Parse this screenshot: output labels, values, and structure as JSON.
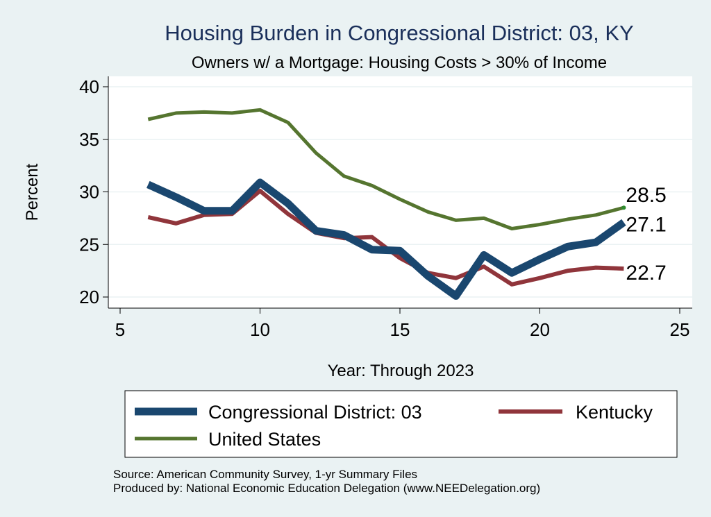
{
  "chart_data": {
    "type": "line",
    "title": "Housing Burden in Congressional District:  03, KY",
    "subtitle": "Owners w/ a Mortgage: Housing Costs > 30% of Income",
    "xlabel": "Year: Through 2023",
    "ylabel": "Percent",
    "xlim": [
      5,
      25
    ],
    "ylim": [
      20,
      40
    ],
    "xticks": [
      5,
      10,
      15,
      20,
      25
    ],
    "yticks": [
      20,
      25,
      30,
      35,
      40
    ],
    "grid": true,
    "legend_position": "bottom",
    "x": [
      6,
      7,
      8,
      9,
      10,
      11,
      12,
      13,
      14,
      15,
      16,
      17,
      18,
      19,
      20,
      21,
      22,
      23
    ],
    "series": [
      {
        "name": "Congressional District:  03",
        "color": "#1a476f",
        "values": [
          30.7,
          29.5,
          28.2,
          28.2,
          30.9,
          28.9,
          26.3,
          25.9,
          24.5,
          24.4,
          22.0,
          20.1,
          24.0,
          22.3,
          23.6,
          24.8,
          25.2,
          27.1
        ],
        "end_label": "27.1"
      },
      {
        "name": "Kentucky",
        "color": "#90353b",
        "values": [
          27.6,
          27.0,
          27.8,
          27.9,
          30.1,
          27.9,
          26.1,
          25.6,
          25.7,
          23.7,
          22.3,
          21.8,
          22.9,
          21.2,
          21.8,
          22.5,
          22.8,
          22.7
        ],
        "end_label": "22.7"
      },
      {
        "name": "United States",
        "color": "#55752f",
        "values": [
          36.9,
          37.5,
          37.6,
          37.5,
          37.8,
          36.6,
          33.7,
          31.5,
          30.6,
          29.3,
          28.1,
          27.3,
          27.5,
          26.5,
          26.9,
          27.4,
          27.8,
          28.5
        ],
        "end_label": "28.5"
      }
    ]
  },
  "source": {
    "line1": "Source: American Community Survey, 1-yr Summary Files",
    "line2": "Produced by: National Economic Education Delegation (www.NEEDelegation.org)"
  }
}
